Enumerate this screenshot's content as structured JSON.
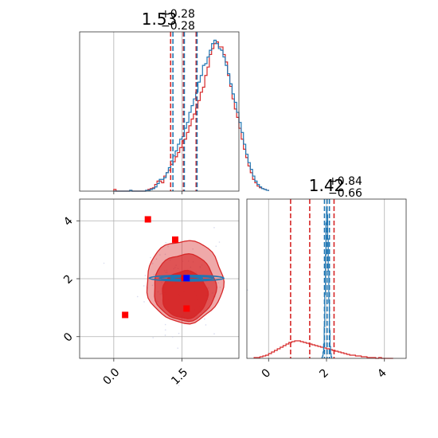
{
  "chart_data": {
    "type": "corner",
    "colors": {
      "red": "#d62728",
      "blue": "#1f77b4",
      "marker_blue": "#0000ff",
      "marker_red": "#ff0000",
      "axis": "#333333",
      "grid": "#b0b0b0"
    },
    "panels": {
      "hist_x": {
        "title": {
          "value": "1.53",
          "plus": "+0.28",
          "minus": "−0.28"
        },
        "xlim": [
          -0.75,
          2.75
        ],
        "grid_x": [
          0.0,
          1.5
        ],
        "quantiles_red": [
          1.25,
          1.53,
          1.81
        ],
        "quantiles_blue": [
          1.3,
          1.55,
          1.83
        ],
        "bin_start": 0.0,
        "bin_width": 0.05,
        "red_counts": [
          2,
          0,
          0,
          0,
          0,
          0,
          0,
          1,
          0,
          0,
          0,
          0,
          0,
          0,
          1,
          2,
          3,
          4,
          8,
          12,
          12,
          10,
          18,
          22,
          25,
          32,
          35,
          41,
          46,
          52,
          60,
          62,
          70,
          78,
          86,
          92,
          99,
          108,
          118,
          124,
          138,
          148,
          163,
          170,
          176,
          178,
          172,
          172,
          163,
          154,
          138,
          125,
          110,
          98,
          88,
          75,
          62,
          50,
          40,
          30,
          22,
          14,
          10,
          6,
          4,
          3,
          2,
          1
        ],
        "blue_counts": [
          0,
          0,
          0,
          0,
          0,
          0,
          0,
          1,
          0,
          0,
          0,
          0,
          0,
          0,
          1,
          1,
          2,
          3,
          5,
          9,
          14,
          14,
          16,
          22,
          28,
          36,
          42,
          48,
          56,
          62,
          65,
          75,
          82,
          94,
          102,
          110,
          118,
          130,
          138,
          150,
          152,
          160,
          168,
          176,
          180,
          176,
          170,
          168,
          160,
          150,
          140,
          128,
          116,
          106,
          94,
          82,
          70,
          56,
          44,
          34,
          26,
          18,
          12,
          8,
          5,
          3,
          2,
          1
        ],
        "ylim": [
          0,
          190
        ]
      },
      "joint": {
        "xlim": [
          -0.75,
          2.75
        ],
        "ylim": [
          -0.75,
          4.75
        ],
        "xticks": [
          {
            "value": 0.0,
            "label": "0.0"
          },
          {
            "value": 1.5,
            "label": "1.5"
          }
        ],
        "yticks": [
          {
            "value": 0,
            "label": "0"
          },
          {
            "value": 2,
            "label": "2"
          },
          {
            "value": 4,
            "label": "4"
          }
        ],
        "red_contours": [
          {
            "level": "outer",
            "cx": 1.56,
            "cy": 1.9,
            "rx": 0.84,
            "ry": 1.42
          },
          {
            "level": "middle",
            "cx": 1.56,
            "cy": 1.7,
            "rx": 0.68,
            "ry": 1.15
          },
          {
            "level": "inner",
            "cx": 1.56,
            "cy": 1.45,
            "rx": 0.5,
            "ry": 0.82
          }
        ],
        "blue_contours": [
          {
            "level": "outer",
            "cx": 1.6,
            "cy": 2.02,
            "rx": 0.82,
            "ry": 0.1
          },
          {
            "level": "middle",
            "cx": 1.6,
            "cy": 2.02,
            "rx": 0.6,
            "ry": 0.06
          },
          {
            "level": "inner",
            "cx": 1.6,
            "cy": 2.02,
            "rx": 0.35,
            "ry": 0.03
          }
        ],
        "red_markers": [
          {
            "x": 0.25,
            "y": 0.75
          },
          {
            "x": 0.75,
            "y": 4.05
          },
          {
            "x": 1.35,
            "y": 3.35
          },
          {
            "x": 1.6,
            "y": 0.97
          },
          {
            "x": 1.55,
            "y": 2.02
          }
        ],
        "blue_marker": {
          "x": 1.6,
          "y": 2.02
        }
      },
      "hist_y": {
        "title": {
          "value": "1.42",
          "plus": "+0.84",
          "minus": "−0.66"
        },
        "xlim": [
          -0.75,
          4.75
        ],
        "xticks": [
          {
            "value": 0,
            "label": "0"
          },
          {
            "value": 2,
            "label": "2"
          },
          {
            "value": 4,
            "label": "4"
          }
        ],
        "grid_x": [
          0,
          2,
          4
        ],
        "quantiles_red": [
          0.76,
          1.42,
          2.26
        ],
        "quantiles_blue": [
          1.93,
          2.02,
          2.1
        ],
        "ylim": [
          0,
          200
        ],
        "red_steps": {
          "bin_start": -0.5,
          "bin_width": 0.1,
          "counts": [
            1,
            1,
            2,
            3,
            4,
            6,
            8,
            10,
            12,
            14,
            16,
            18,
            20,
            21,
            22,
            22,
            21,
            20,
            19,
            18,
            17,
            16,
            15,
            14,
            13,
            12,
            11,
            10,
            9,
            8,
            7,
            6,
            5,
            4,
            4,
            3,
            3,
            2,
            2,
            1,
            1,
            1,
            0,
            1,
            0,
            0,
            0,
            0
          ]
        },
        "blue_steps": {
          "bin_start": 1.84,
          "bin_width": 0.02,
          "counts": [
            1,
            3,
            8,
            18,
            40,
            80,
            130,
            170,
            190,
            180,
            150,
            110,
            70,
            35,
            15,
            6,
            2
          ]
        }
      }
    }
  }
}
